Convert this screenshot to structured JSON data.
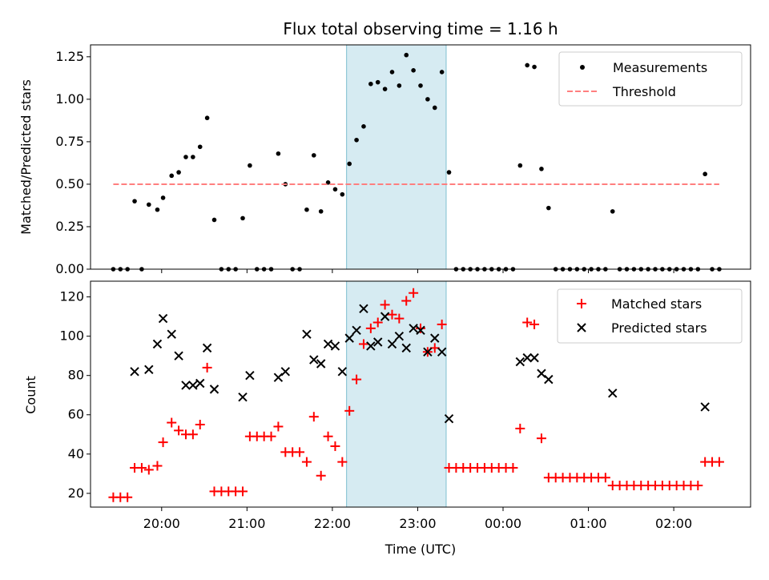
{
  "chart_data": [
    {
      "type": "scatter",
      "title": "Flux total observing time = 1.16 h",
      "xlabel": "",
      "ylabel": "Matched/Predicted stars",
      "x_ticks": [
        "20:00",
        "21:00",
        "22:00",
        "23:00",
        "00:00",
        "01:00",
        "02:00"
      ],
      "y_ticks": [
        "0.00",
        "0.25",
        "0.50",
        "0.75",
        "1.00",
        "1.25"
      ],
      "ylim": [
        0,
        1.32
      ],
      "xlim": [
        "19:10",
        "02:54"
      ],
      "shaded_region": [
        "22:10",
        "23:20"
      ],
      "shaded_color": "#add8e6",
      "legend_position": "top-right",
      "series": [
        {
          "name": "Measurements",
          "marker": "dot",
          "color": "#000000",
          "points": [
            [
              "19:26",
              0.0
            ],
            [
              "19:31",
              0.0
            ],
            [
              "19:36",
              0.0
            ],
            [
              "19:41",
              0.4
            ],
            [
              "19:46",
              0.0
            ],
            [
              "19:51",
              0.38
            ],
            [
              "19:57",
              0.35
            ],
            [
              "20:01",
              0.42
            ],
            [
              "20:07",
              0.55
            ],
            [
              "20:12",
              0.57
            ],
            [
              "20:17",
              0.66
            ],
            [
              "20:22",
              0.66
            ],
            [
              "20:27",
              0.72
            ],
            [
              "20:32",
              0.89
            ],
            [
              "20:37",
              0.29
            ],
            [
              "20:42",
              0.0
            ],
            [
              "20:47",
              0.0
            ],
            [
              "20:52",
              0.0
            ],
            [
              "20:57",
              0.3
            ],
            [
              "21:02",
              0.61
            ],
            [
              "21:07",
              0.0
            ],
            [
              "21:12",
              0.0
            ],
            [
              "21:17",
              0.0
            ],
            [
              "21:22",
              0.68
            ],
            [
              "21:27",
              0.5
            ],
            [
              "21:32",
              0.0
            ],
            [
              "21:37",
              0.0
            ],
            [
              "21:42",
              0.35
            ],
            [
              "21:47",
              0.67
            ],
            [
              "21:52",
              0.34
            ],
            [
              "21:57",
              0.51
            ],
            [
              "22:02",
              0.47
            ],
            [
              "22:07",
              0.44
            ],
            [
              "22:12",
              0.62
            ],
            [
              "22:17",
              0.76
            ],
            [
              "22:22",
              0.84
            ],
            [
              "22:27",
              1.09
            ],
            [
              "22:32",
              1.1
            ],
            [
              "22:37",
              1.06
            ],
            [
              "22:42",
              1.16
            ],
            [
              "22:47",
              1.08
            ],
            [
              "22:52",
              1.26
            ],
            [
              "22:57",
              1.17
            ],
            [
              "23:02",
              1.08
            ],
            [
              "23:07",
              1.0
            ],
            [
              "23:12",
              0.95
            ],
            [
              "23:17",
              1.16
            ],
            [
              "23:22",
              0.57
            ],
            [
              "23:27",
              0.0
            ],
            [
              "23:32",
              0.0
            ],
            [
              "23:37",
              0.0
            ],
            [
              "23:42",
              0.0
            ],
            [
              "23:47",
              0.0
            ],
            [
              "23:52",
              0.0
            ],
            [
              "23:57",
              0.0
            ],
            [
              "00:02",
              0.0
            ],
            [
              "00:07",
              0.0
            ],
            [
              "00:12",
              0.61
            ],
            [
              "00:17",
              1.2
            ],
            [
              "00:22",
              1.19
            ],
            [
              "00:27",
              0.59
            ],
            [
              "00:32",
              0.36
            ],
            [
              "00:37",
              0.0
            ],
            [
              "00:42",
              0.0
            ],
            [
              "00:47",
              0.0
            ],
            [
              "00:52",
              0.0
            ],
            [
              "00:57",
              0.0
            ],
            [
              "01:02",
              0.0
            ],
            [
              "01:07",
              0.0
            ],
            [
              "01:12",
              0.0
            ],
            [
              "01:17",
              0.34
            ],
            [
              "01:22",
              0.0
            ],
            [
              "01:27",
              0.0
            ],
            [
              "01:32",
              0.0
            ],
            [
              "01:37",
              0.0
            ],
            [
              "01:42",
              0.0
            ],
            [
              "01:47",
              0.0
            ],
            [
              "01:52",
              0.0
            ],
            [
              "01:57",
              0.0
            ],
            [
              "02:02",
              0.0
            ],
            [
              "02:07",
              0.0
            ],
            [
              "02:12",
              0.0
            ],
            [
              "02:17",
              0.0
            ],
            [
              "02:22",
              0.56
            ],
            [
              "02:27",
              0.0
            ],
            [
              "02:32",
              0.0
            ]
          ]
        },
        {
          "name": "Threshold",
          "marker": "dashed-line",
          "color": "#ff7f7f",
          "value": 0.5,
          "range": [
            "19:26",
            "02:32"
          ]
        }
      ]
    },
    {
      "type": "scatter",
      "title": "",
      "xlabel": "Time (UTC)",
      "ylabel": "Count",
      "x_ticks": [
        "20:00",
        "21:00",
        "22:00",
        "23:00",
        "00:00",
        "01:00",
        "02:00"
      ],
      "y_ticks": [
        "20",
        "40",
        "60",
        "80",
        "100",
        "120"
      ],
      "ylim": [
        13,
        128
      ],
      "legend_position": "top-right",
      "series": [
        {
          "name": "Matched stars",
          "marker": "plus",
          "color": "#ff0000",
          "points": [
            [
              "19:26",
              18
            ],
            [
              "19:31",
              18
            ],
            [
              "19:36",
              18
            ],
            [
              "19:41",
              33
            ],
            [
              "19:46",
              33
            ],
            [
              "19:51",
              32
            ],
            [
              "19:57",
              34
            ],
            [
              "20:01",
              46
            ],
            [
              "20:07",
              56
            ],
            [
              "20:12",
              52
            ],
            [
              "20:17",
              50
            ],
            [
              "20:22",
              50
            ],
            [
              "20:27",
              55
            ],
            [
              "20:32",
              84
            ],
            [
              "20:37",
              21
            ],
            [
              "20:42",
              21
            ],
            [
              "20:47",
              21
            ],
            [
              "20:52",
              21
            ],
            [
              "20:57",
              21
            ],
            [
              "21:02",
              49
            ],
            [
              "21:07",
              49
            ],
            [
              "21:12",
              49
            ],
            [
              "21:17",
              49
            ],
            [
              "21:22",
              54
            ],
            [
              "21:27",
              41
            ],
            [
              "21:32",
              41
            ],
            [
              "21:37",
              41
            ],
            [
              "21:42",
              36
            ],
            [
              "21:47",
              59
            ],
            [
              "21:52",
              29
            ],
            [
              "21:57",
              49
            ],
            [
              "22:02",
              44
            ],
            [
              "22:07",
              36
            ],
            [
              "22:12",
              62
            ],
            [
              "22:17",
              78
            ],
            [
              "22:22",
              96
            ],
            [
              "22:27",
              104
            ],
            [
              "22:32",
              107
            ],
            [
              "22:37",
              116
            ],
            [
              "22:42",
              111
            ],
            [
              "22:47",
              109
            ],
            [
              "22:52",
              118
            ],
            [
              "22:57",
              122
            ],
            [
              "23:02",
              104
            ],
            [
              "23:07",
              92
            ],
            [
              "23:12",
              94
            ],
            [
              "23:17",
              106
            ],
            [
              "23:22",
              33
            ],
            [
              "23:27",
              33
            ],
            [
              "23:32",
              33
            ],
            [
              "23:37",
              33
            ],
            [
              "23:42",
              33
            ],
            [
              "23:47",
              33
            ],
            [
              "23:52",
              33
            ],
            [
              "23:57",
              33
            ],
            [
              "00:02",
              33
            ],
            [
              "00:07",
              33
            ],
            [
              "00:12",
              53
            ],
            [
              "00:17",
              107
            ],
            [
              "00:22",
              106
            ],
            [
              "00:27",
              48
            ],
            [
              "00:32",
              28
            ],
            [
              "00:37",
              28
            ],
            [
              "00:42",
              28
            ],
            [
              "00:47",
              28
            ],
            [
              "00:52",
              28
            ],
            [
              "00:57",
              28
            ],
            [
              "01:02",
              28
            ],
            [
              "01:07",
              28
            ],
            [
              "01:12",
              28
            ],
            [
              "01:17",
              24
            ],
            [
              "01:22",
              24
            ],
            [
              "01:27",
              24
            ],
            [
              "01:32",
              24
            ],
            [
              "01:37",
              24
            ],
            [
              "01:42",
              24
            ],
            [
              "01:47",
              24
            ],
            [
              "01:52",
              24
            ],
            [
              "01:57",
              24
            ],
            [
              "02:02",
              24
            ],
            [
              "02:07",
              24
            ],
            [
              "02:12",
              24
            ],
            [
              "02:17",
              24
            ],
            [
              "02:22",
              36
            ],
            [
              "02:27",
              36
            ],
            [
              "02:32",
              36
            ]
          ]
        },
        {
          "name": "Predicted stars",
          "marker": "x",
          "color": "#000000",
          "points": [
            [
              "19:41",
              82
            ],
            [
              "19:51",
              83
            ],
            [
              "19:57",
              96
            ],
            [
              "20:01",
              109
            ],
            [
              "20:07",
              101
            ],
            [
              "20:12",
              90
            ],
            [
              "20:17",
              75
            ],
            [
              "20:22",
              75
            ],
            [
              "20:27",
              76
            ],
            [
              "20:32",
              94
            ],
            [
              "20:37",
              73
            ],
            [
              "20:57",
              69
            ],
            [
              "21:02",
              80
            ],
            [
              "21:22",
              79
            ],
            [
              "21:27",
              82
            ],
            [
              "21:42",
              101
            ],
            [
              "21:47",
              88
            ],
            [
              "21:52",
              86
            ],
            [
              "21:57",
              96
            ],
            [
              "22:02",
              95
            ],
            [
              "22:07",
              82
            ],
            [
              "22:12",
              99
            ],
            [
              "22:17",
              103
            ],
            [
              "22:22",
              114
            ],
            [
              "22:27",
              95
            ],
            [
              "22:32",
              97
            ],
            [
              "22:37",
              110
            ],
            [
              "22:42",
              96
            ],
            [
              "22:47",
              100
            ],
            [
              "22:52",
              94
            ],
            [
              "22:57",
              104
            ],
            [
              "23:02",
              103
            ],
            [
              "23:07",
              92
            ],
            [
              "23:12",
              99
            ],
            [
              "23:17",
              92
            ],
            [
              "23:22",
              58
            ],
            [
              "00:12",
              87
            ],
            [
              "00:17",
              89
            ],
            [
              "00:22",
              89
            ],
            [
              "00:27",
              81
            ],
            [
              "00:32",
              78
            ],
            [
              "01:17",
              71
            ],
            [
              "02:22",
              64
            ]
          ]
        }
      ]
    }
  ]
}
